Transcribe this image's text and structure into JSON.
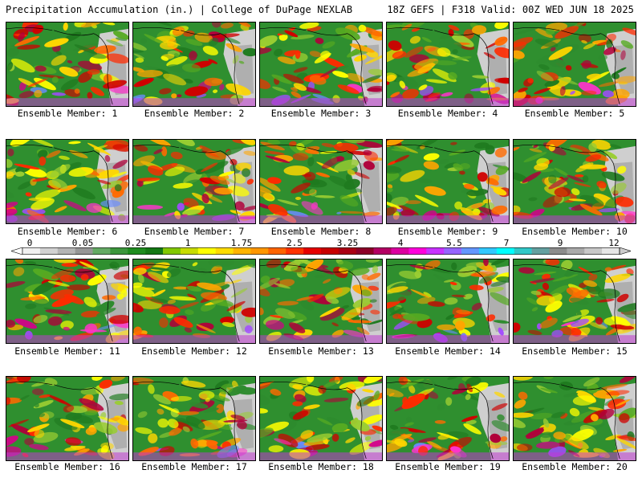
{
  "header": {
    "title_left": "Precipitation Accumulation (in.) | College of DuPage NEXLAB",
    "title_right": "18Z GEFS | F318 Valid: 00Z WED JUN 18 2025"
  },
  "members": [
    {
      "label": "Ensemble Member: 1"
    },
    {
      "label": "Ensemble Member: 2"
    },
    {
      "label": "Ensemble Member: 3"
    },
    {
      "label": "Ensemble Member: 4"
    },
    {
      "label": "Ensemble Member: 5"
    },
    {
      "label": "Ensemble Member: 6"
    },
    {
      "label": "Ensemble Member: 7"
    },
    {
      "label": "Ensemble Member: 8"
    },
    {
      "label": "Ensemble Member: 9"
    },
    {
      "label": "Ensemble Member: 10"
    },
    {
      "label": "Ensemble Member: 11"
    },
    {
      "label": "Ensemble Member: 12"
    },
    {
      "label": "Ensemble Member: 13"
    },
    {
      "label": "Ensemble Member: 14"
    },
    {
      "label": "Ensemble Member: 15"
    },
    {
      "label": "Ensemble Member: 16"
    },
    {
      "label": "Ensemble Member: 17"
    },
    {
      "label": "Ensemble Member: 18"
    },
    {
      "label": "Ensemble Member: 19"
    },
    {
      "label": "Ensemble Member: 20"
    }
  ],
  "colorbar": {
    "tick_labels": [
      "0",
      "0.05",
      "0.25",
      "1",
      "1.75",
      "2.5",
      "3.25",
      "4",
      "5.5",
      "7",
      "9",
      "12"
    ],
    "colors": [
      "#f0f0f0",
      "#d2d2d2",
      "#b4b4b4",
      "#969696",
      "#64aa64",
      "#3c963c",
      "#1e8c1e",
      "#147814",
      "#82c800",
      "#c8dc00",
      "#ffff00",
      "#ffdc00",
      "#ffb400",
      "#ff9600",
      "#ff6400",
      "#ff3200",
      "#e60000",
      "#c80000",
      "#aa0014",
      "#8c0028",
      "#b40064",
      "#dc00a0",
      "#ff00dc",
      "#c832ff",
      "#9664ff",
      "#6496ff",
      "#32c8ff",
      "#00ffff",
      "#32c8c8",
      "#64a0a0",
      "#8c8c8c",
      "#aaaaaa",
      "#c8c8c8",
      "#e6e6e6"
    ]
  }
}
